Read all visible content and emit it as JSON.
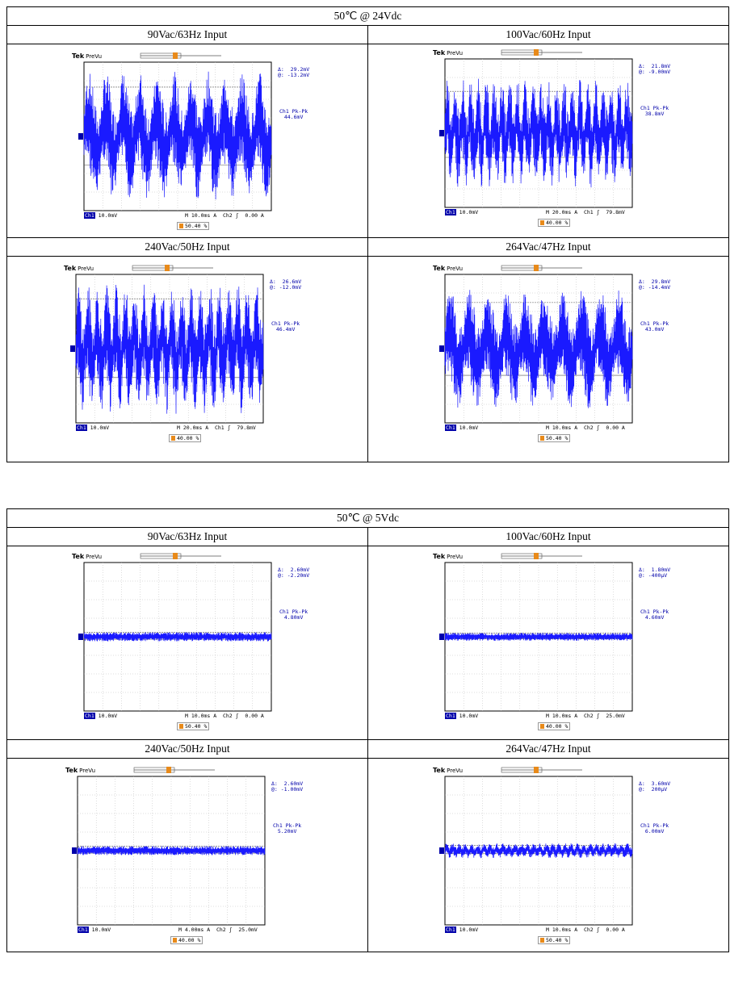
{
  "sections": [
    {
      "title": "50℃ @ 24Vdc",
      "cells": [
        {
          "label": "90Vac/63Hz Input",
          "delta": "Δ:  29.2mV",
          "at": "@: -13.2mV",
          "pk_label": "Ch1 Pk-Pk",
          "pk_value": "44.6mV",
          "ch1_scale": "10.0mV",
          "time": "M 10.0ms",
          "trig": "A  Ch2 ʃ  0.00 A",
          "pct": "50.40 %",
          "amp": 0.92,
          "cycles": 11,
          "hf": true
        },
        {
          "label": "100Vac/60Hz Input",
          "delta": "Δ:  21.8mV",
          "at": "@: -9.00mV",
          "pk_label": "Ch1 Pk-Pk",
          "pk_value": "38.8mV",
          "ch1_scale": "10.0mV",
          "time": "M 20.0ms",
          "trig": "A  Ch1 ʃ  79.8mV",
          "pct": "40.00 %",
          "amp": 0.78,
          "cycles": 24,
          "hf": true
        },
        {
          "label": "240Vac/50Hz Input",
          "delta": "Δ:  26.6mV",
          "at": "@: -12.0mV",
          "pk_label": "Ch1 Pk-Pk",
          "pk_value": "46.4mV",
          "ch1_scale": "10.0mV",
          "time": "M 20.0ms",
          "trig": "A  Ch1 ʃ  79.8mV",
          "pct": "40.00 %",
          "amp": 0.93,
          "cycles": 20,
          "hf": true
        },
        {
          "label": "264Vac/47Hz Input",
          "delta": "Δ:  29.8mV",
          "at": "@: -14.4mV",
          "pk_label": "Ch1 Pk-Pk",
          "pk_value": "43.0mV",
          "ch1_scale": "10.0mV",
          "time": "M 10.0ms",
          "trig": "A  Ch2 ʃ  0.00 A",
          "pct": "50.40 %",
          "amp": 0.86,
          "cycles": 10,
          "hf": true
        }
      ]
    },
    {
      "title": "50℃ @ 5Vdc",
      "cells": [
        {
          "label": "90Vac/63Hz Input",
          "delta": "Δ:  2.60mV",
          "at": "@: -2.20mV",
          "pk_label": "Ch1 Pk-Pk",
          "pk_value": "4.80mV",
          "ch1_scale": "10.0mV",
          "time": "M 10.0ms",
          "trig": "A  Ch2 ʃ  0.00 A",
          "pct": "50.40 %",
          "amp": 0.08,
          "cycles": 0,
          "hf": true
        },
        {
          "label": "100Vac/60Hz Input",
          "delta": "Δ:  1.80mV",
          "at": "@: -400μV",
          "pk_label": "Ch1 Pk-Pk",
          "pk_value": "4.60mV",
          "ch1_scale": "10.0mV",
          "time": "M 10.0ms",
          "trig": "A  Ch2 ʃ  25.0mV",
          "pct": "40.00 %",
          "amp": 0.07,
          "cycles": 0,
          "hf": true
        },
        {
          "label": "240Vac/50Hz Input",
          "delta": "Δ:  2.60mV",
          "at": "@: -1.00mV",
          "pk_label": "Ch1 Pk-Pk",
          "pk_value": "5.20mV",
          "ch1_scale": "10.0mV",
          "time": "M 4.00ms",
          "trig": "A  Ch2 ʃ  25.0mV",
          "pct": "40.00 %",
          "amp": 0.08,
          "cycles": 0,
          "hf": true
        },
        {
          "label": "264Vac/47Hz Input",
          "delta": "Δ:  3.60mV",
          "at": "@:  200μV",
          "pk_label": "Ch1 Pk-Pk",
          "pk_value": "6.00mV",
          "ch1_scale": "10.0mV",
          "time": "M 10.0ms",
          "trig": "A  Ch2 ʃ  0.00 A",
          "pct": "50.40 %",
          "amp": 0.1,
          "cycles": 30,
          "hf": true
        }
      ]
    }
  ],
  "scope_brand": "Tek",
  "scope_mode": "PreVu",
  "ch1_label": "Ch1",
  "trace_color": "#1a1aff"
}
